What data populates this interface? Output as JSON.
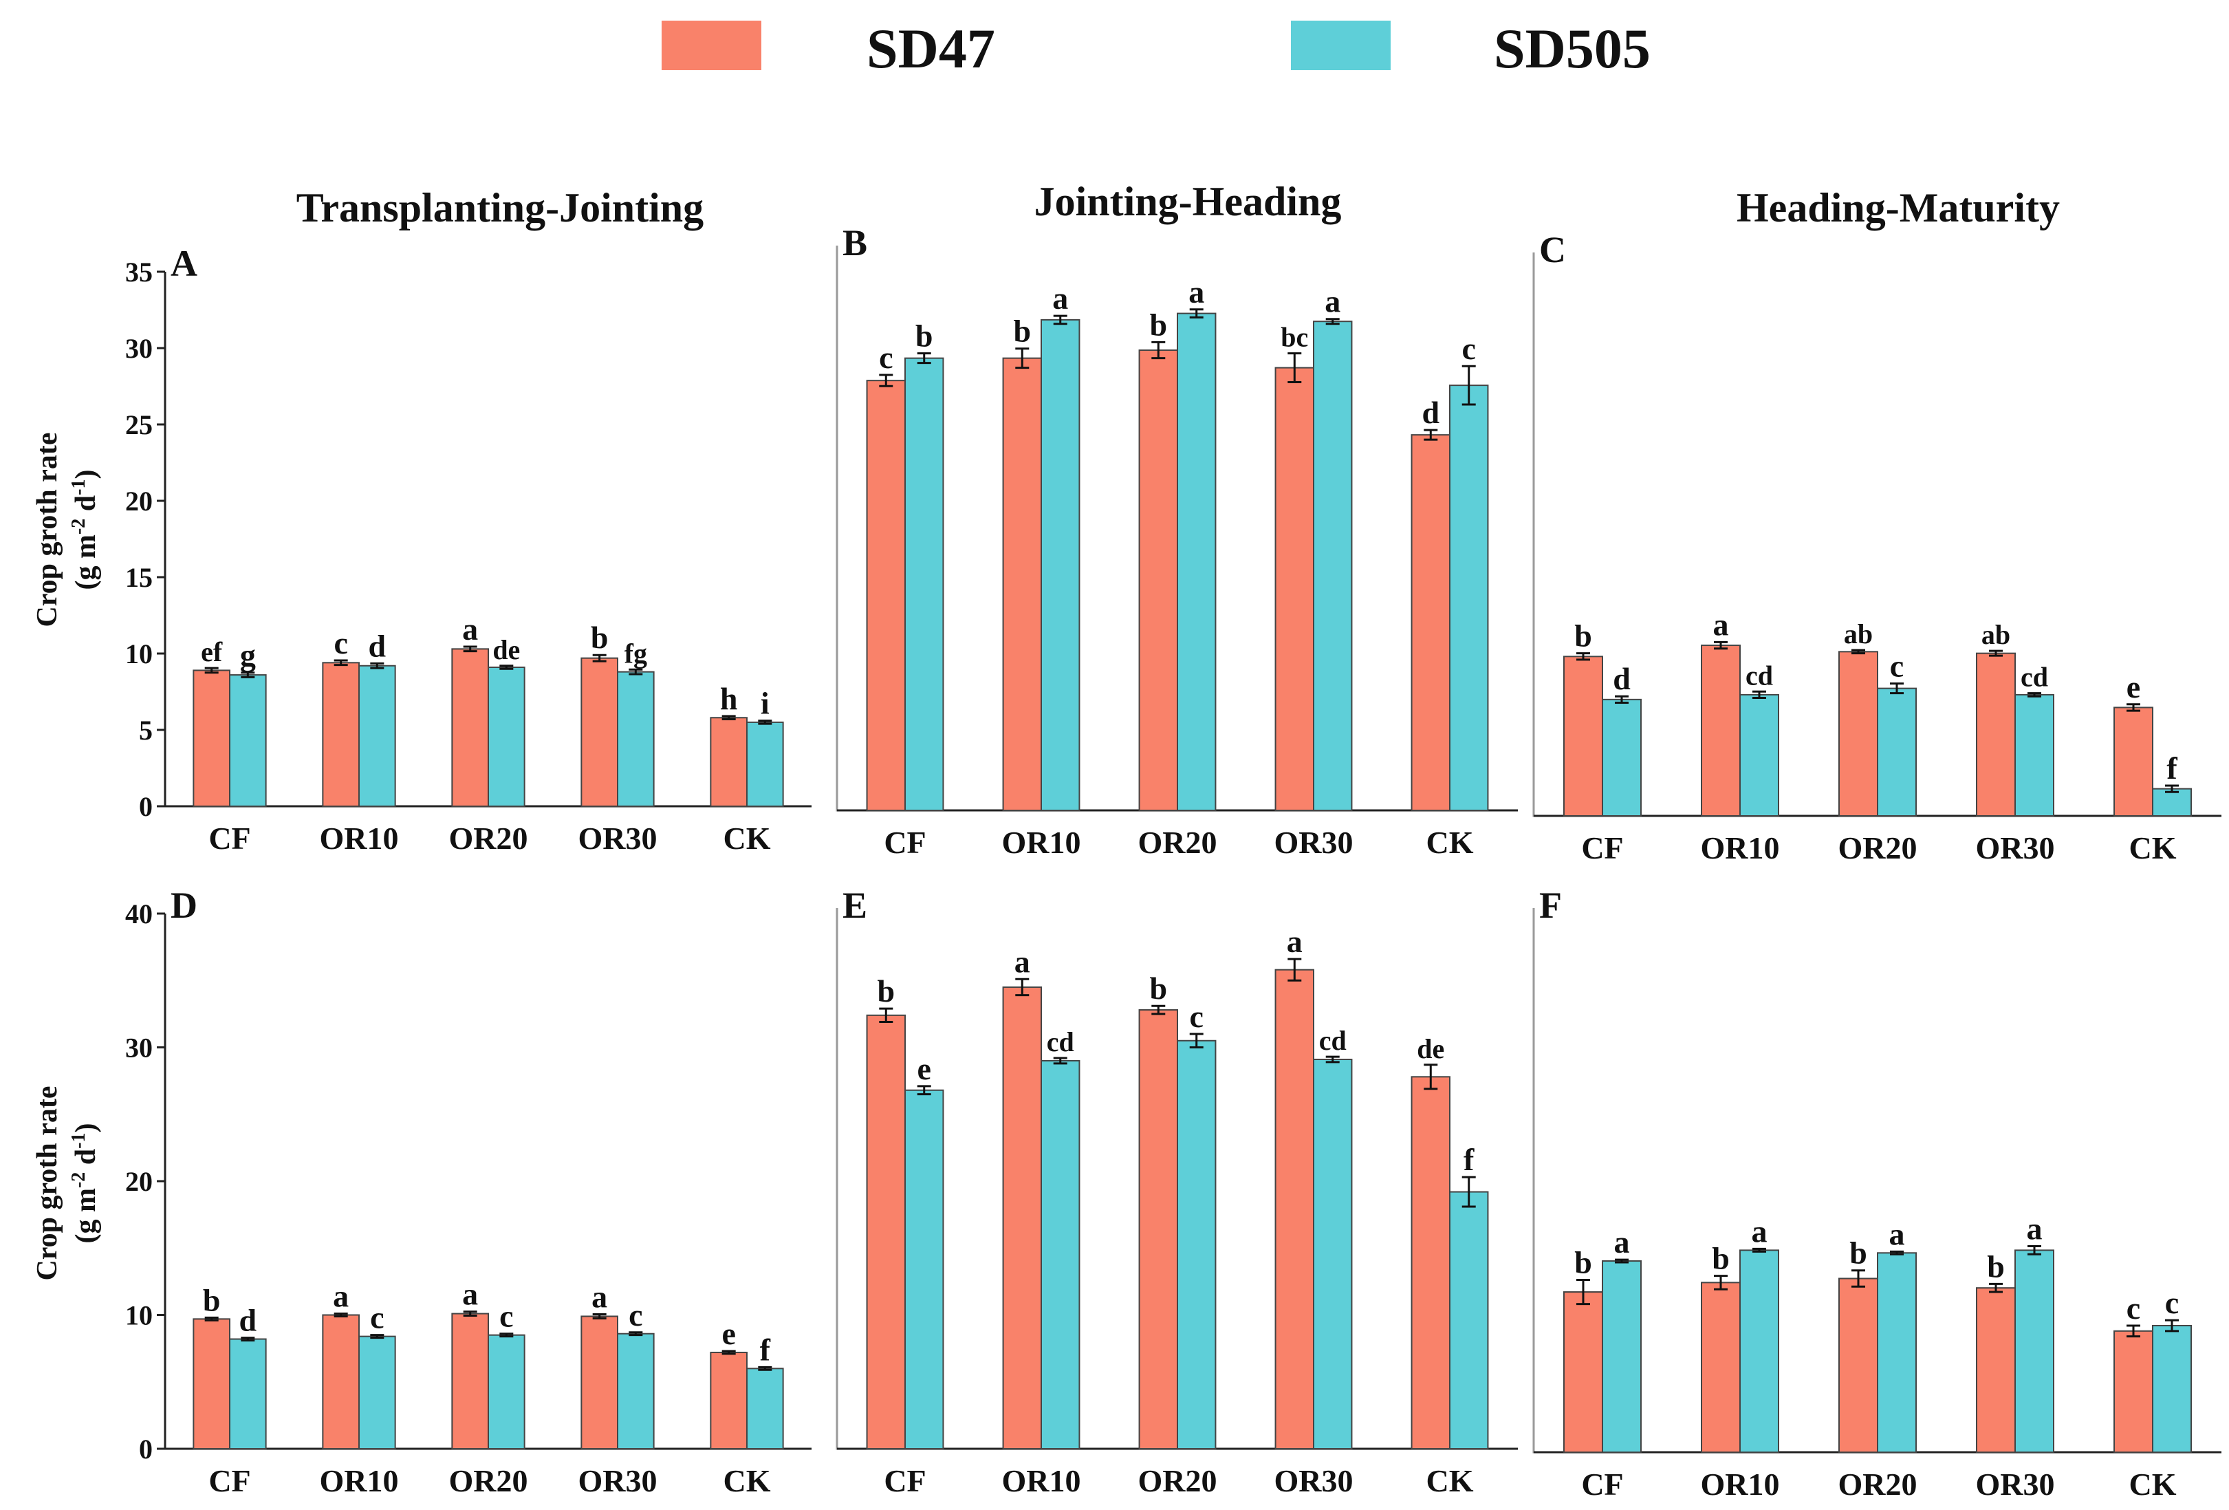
{
  "legend": [
    {
      "name": "SD47",
      "color": "#F9826A"
    },
    {
      "name": "SD505",
      "color": "#5ECFD8"
    }
  ],
  "column_titles": [
    "Transplanting-Jointing",
    "Jointing-Heading",
    "Heading-Maturity"
  ],
  "y_axis_label": {
    "line1": "Crop groth rate",
    "line2_prefix": "(g m",
    "sup1": "-2",
    "mid": " d",
    "sup2": "-1",
    "suffix": ")"
  },
  "chart_data": [
    {
      "type": "bar",
      "panel": "A",
      "title": "Transplanting-Jointing",
      "categories": [
        "CF",
        "OR10",
        "OR20",
        "OR30",
        "CK"
      ],
      "ylim": [
        0,
        35
      ],
      "yticks": [
        0,
        5,
        10,
        15,
        20,
        25,
        30,
        35
      ],
      "show_y_axis": true,
      "series": [
        {
          "name": "SD47",
          "values": [
            8.9,
            9.4,
            10.3,
            9.7,
            5.8
          ],
          "errors": [
            0.15,
            0.15,
            0.15,
            0.2,
            0.1
          ],
          "letters": [
            "ef",
            "c",
            "a",
            "b",
            "h"
          ]
        },
        {
          "name": "SD505",
          "values": [
            8.6,
            9.2,
            9.1,
            8.8,
            5.5
          ],
          "errors": [
            0.15,
            0.15,
            0.1,
            0.15,
            0.1
          ],
          "letters": [
            "g",
            "d",
            "de",
            "fg",
            "i"
          ]
        }
      ]
    },
    {
      "type": "bar",
      "panel": "B",
      "title": "Jointing-Heading",
      "categories": [
        "CF",
        "OR10",
        "OR20",
        "OR30",
        "CK"
      ],
      "ylim": [
        0,
        35
      ],
      "yticks": [
        0,
        5,
        10,
        15,
        20,
        25,
        30,
        35
      ],
      "show_y_axis": false,
      "series": [
        {
          "name": "SD47",
          "values": [
            26.9,
            28.3,
            28.8,
            27.7,
            23.5
          ],
          "errors": [
            0.35,
            0.6,
            0.5,
            0.9,
            0.3
          ],
          "letters": [
            "c",
            "b",
            "b",
            "bc",
            "d"
          ]
        },
        {
          "name": "SD505",
          "values": [
            28.3,
            30.7,
            31.1,
            30.6,
            26.6
          ],
          "errors": [
            0.3,
            0.25,
            0.25,
            0.15,
            1.2
          ],
          "letters": [
            "b",
            "a",
            "a",
            "a",
            "c"
          ]
        }
      ]
    },
    {
      "type": "bar",
      "panel": "C",
      "title": "Heading-Maturity",
      "categories": [
        "CF",
        "OR10",
        "OR20",
        "OR30",
        "CK"
      ],
      "ylim": [
        0,
        35
      ],
      "yticks": [
        0,
        5,
        10,
        15,
        20,
        25,
        30,
        35
      ],
      "show_y_axis": false,
      "series": [
        {
          "name": "SD47",
          "values": [
            10.0,
            10.7,
            10.3,
            10.2,
            6.8
          ],
          "errors": [
            0.2,
            0.2,
            0.1,
            0.15,
            0.2
          ],
          "letters": [
            "b",
            "a",
            "ab",
            "ab",
            "e"
          ]
        },
        {
          "name": "SD505",
          "values": [
            7.3,
            7.6,
            8.0,
            7.6,
            1.7
          ],
          "errors": [
            0.2,
            0.2,
            0.3,
            0.1,
            0.2
          ],
          "letters": [
            "d",
            "cd",
            "c",
            "cd",
            "f"
          ]
        }
      ]
    },
    {
      "type": "bar",
      "panel": "D",
      "title": "",
      "categories": [
        "CF",
        "OR10",
        "OR20",
        "OR30",
        "CK"
      ],
      "ylim": [
        0,
        40
      ],
      "yticks": [
        0,
        10,
        20,
        30,
        40
      ],
      "show_y_axis": true,
      "series": [
        {
          "name": "SD47",
          "values": [
            9.7,
            10.0,
            10.1,
            9.9,
            7.2
          ],
          "errors": [
            0.1,
            0.1,
            0.15,
            0.15,
            0.1
          ],
          "letters": [
            "b",
            "a",
            "a",
            "a",
            "e"
          ]
        },
        {
          "name": "SD505",
          "values": [
            8.2,
            8.4,
            8.5,
            8.6,
            6.0
          ],
          "errors": [
            0.1,
            0.1,
            0.1,
            0.1,
            0.1
          ],
          "letters": [
            "d",
            "c",
            "c",
            "c",
            "f"
          ]
        }
      ]
    },
    {
      "type": "bar",
      "panel": "E",
      "title": "",
      "categories": [
        "CF",
        "OR10",
        "OR20",
        "OR30",
        "CK"
      ],
      "ylim": [
        0,
        40
      ],
      "yticks": [
        0,
        10,
        20,
        30,
        40
      ],
      "show_y_axis": false,
      "series": [
        {
          "name": "SD47",
          "values": [
            32.4,
            34.5,
            32.8,
            35.8,
            27.8
          ],
          "errors": [
            0.5,
            0.6,
            0.3,
            0.8,
            0.9
          ],
          "letters": [
            "b",
            "a",
            "b",
            "a",
            "de"
          ]
        },
        {
          "name": "SD505",
          "values": [
            26.8,
            29.0,
            30.5,
            29.1,
            19.2
          ],
          "errors": [
            0.3,
            0.2,
            0.5,
            0.2,
            1.1
          ],
          "letters": [
            "e",
            "cd",
            "c",
            "cd",
            "f"
          ]
        }
      ]
    },
    {
      "type": "bar",
      "panel": "F",
      "title": "",
      "categories": [
        "CF",
        "OR10",
        "OR20",
        "OR30",
        "CK"
      ],
      "ylim": [
        0,
        40
      ],
      "yticks": [
        0,
        10,
        20,
        30,
        40
      ],
      "show_y_axis": false,
      "series": [
        {
          "name": "SD47",
          "values": [
            11.9,
            12.6,
            12.9,
            12.2,
            9.0
          ],
          "errors": [
            0.9,
            0.5,
            0.6,
            0.3,
            0.4
          ],
          "letters": [
            "b",
            "b",
            "b",
            "b",
            "c"
          ]
        },
        {
          "name": "SD505",
          "values": [
            14.2,
            15.0,
            14.8,
            15.0,
            9.4
          ],
          "errors": [
            0.1,
            0.1,
            0.1,
            0.3,
            0.4
          ],
          "letters": [
            "a",
            "a",
            "a",
            "a",
            "c"
          ]
        }
      ]
    }
  ]
}
